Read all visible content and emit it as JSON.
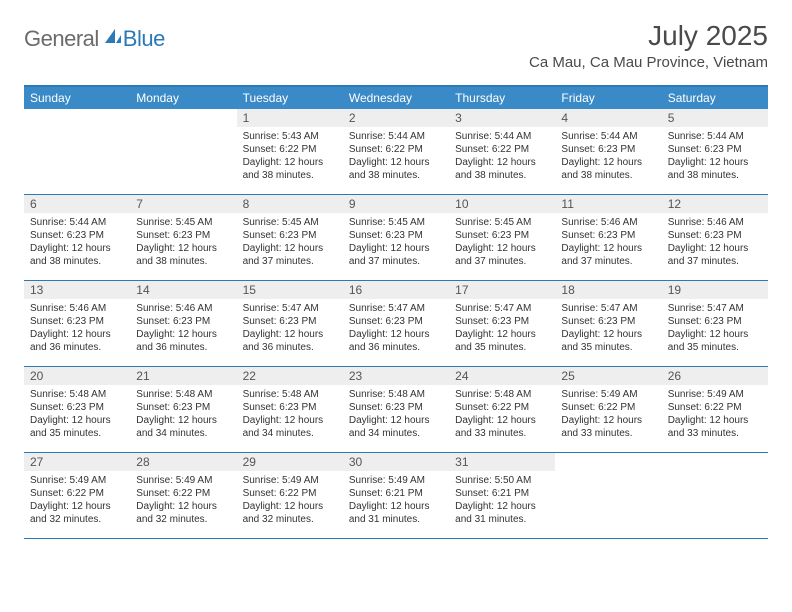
{
  "logo": {
    "general": "General",
    "blue": "Blue"
  },
  "title": "July 2025",
  "location": "Ca Mau, Ca Mau Province, Vietnam",
  "colors": {
    "header_bg": "#3a8ac8",
    "border": "#2a7ab8",
    "daynum_bg": "#eeeeee",
    "text": "#333333",
    "title_color": "#4a4a4a"
  },
  "weekdays": [
    "Sunday",
    "Monday",
    "Tuesday",
    "Wednesday",
    "Thursday",
    "Friday",
    "Saturday"
  ],
  "leading_blanks": 2,
  "days": [
    {
      "n": 1,
      "sunrise": "5:43 AM",
      "sunset": "6:22 PM",
      "daylight": "12 hours and 38 minutes."
    },
    {
      "n": 2,
      "sunrise": "5:44 AM",
      "sunset": "6:22 PM",
      "daylight": "12 hours and 38 minutes."
    },
    {
      "n": 3,
      "sunrise": "5:44 AM",
      "sunset": "6:22 PM",
      "daylight": "12 hours and 38 minutes."
    },
    {
      "n": 4,
      "sunrise": "5:44 AM",
      "sunset": "6:23 PM",
      "daylight": "12 hours and 38 minutes."
    },
    {
      "n": 5,
      "sunrise": "5:44 AM",
      "sunset": "6:23 PM",
      "daylight": "12 hours and 38 minutes."
    },
    {
      "n": 6,
      "sunrise": "5:44 AM",
      "sunset": "6:23 PM",
      "daylight": "12 hours and 38 minutes."
    },
    {
      "n": 7,
      "sunrise": "5:45 AM",
      "sunset": "6:23 PM",
      "daylight": "12 hours and 38 minutes."
    },
    {
      "n": 8,
      "sunrise": "5:45 AM",
      "sunset": "6:23 PM",
      "daylight": "12 hours and 37 minutes."
    },
    {
      "n": 9,
      "sunrise": "5:45 AM",
      "sunset": "6:23 PM",
      "daylight": "12 hours and 37 minutes."
    },
    {
      "n": 10,
      "sunrise": "5:45 AM",
      "sunset": "6:23 PM",
      "daylight": "12 hours and 37 minutes."
    },
    {
      "n": 11,
      "sunrise": "5:46 AM",
      "sunset": "6:23 PM",
      "daylight": "12 hours and 37 minutes."
    },
    {
      "n": 12,
      "sunrise": "5:46 AM",
      "sunset": "6:23 PM",
      "daylight": "12 hours and 37 minutes."
    },
    {
      "n": 13,
      "sunrise": "5:46 AM",
      "sunset": "6:23 PM",
      "daylight": "12 hours and 36 minutes."
    },
    {
      "n": 14,
      "sunrise": "5:46 AM",
      "sunset": "6:23 PM",
      "daylight": "12 hours and 36 minutes."
    },
    {
      "n": 15,
      "sunrise": "5:47 AM",
      "sunset": "6:23 PM",
      "daylight": "12 hours and 36 minutes."
    },
    {
      "n": 16,
      "sunrise": "5:47 AM",
      "sunset": "6:23 PM",
      "daylight": "12 hours and 36 minutes."
    },
    {
      "n": 17,
      "sunrise": "5:47 AM",
      "sunset": "6:23 PM",
      "daylight": "12 hours and 35 minutes."
    },
    {
      "n": 18,
      "sunrise": "5:47 AM",
      "sunset": "6:23 PM",
      "daylight": "12 hours and 35 minutes."
    },
    {
      "n": 19,
      "sunrise": "5:47 AM",
      "sunset": "6:23 PM",
      "daylight": "12 hours and 35 minutes."
    },
    {
      "n": 20,
      "sunrise": "5:48 AM",
      "sunset": "6:23 PM",
      "daylight": "12 hours and 35 minutes."
    },
    {
      "n": 21,
      "sunrise": "5:48 AM",
      "sunset": "6:23 PM",
      "daylight": "12 hours and 34 minutes."
    },
    {
      "n": 22,
      "sunrise": "5:48 AM",
      "sunset": "6:23 PM",
      "daylight": "12 hours and 34 minutes."
    },
    {
      "n": 23,
      "sunrise": "5:48 AM",
      "sunset": "6:23 PM",
      "daylight": "12 hours and 34 minutes."
    },
    {
      "n": 24,
      "sunrise": "5:48 AM",
      "sunset": "6:22 PM",
      "daylight": "12 hours and 33 minutes."
    },
    {
      "n": 25,
      "sunrise": "5:49 AM",
      "sunset": "6:22 PM",
      "daylight": "12 hours and 33 minutes."
    },
    {
      "n": 26,
      "sunrise": "5:49 AM",
      "sunset": "6:22 PM",
      "daylight": "12 hours and 33 minutes."
    },
    {
      "n": 27,
      "sunrise": "5:49 AM",
      "sunset": "6:22 PM",
      "daylight": "12 hours and 32 minutes."
    },
    {
      "n": 28,
      "sunrise": "5:49 AM",
      "sunset": "6:22 PM",
      "daylight": "12 hours and 32 minutes."
    },
    {
      "n": 29,
      "sunrise": "5:49 AM",
      "sunset": "6:22 PM",
      "daylight": "12 hours and 32 minutes."
    },
    {
      "n": 30,
      "sunrise": "5:49 AM",
      "sunset": "6:21 PM",
      "daylight": "12 hours and 31 minutes."
    },
    {
      "n": 31,
      "sunrise": "5:50 AM",
      "sunset": "6:21 PM",
      "daylight": "12 hours and 31 minutes."
    }
  ],
  "labels": {
    "sunrise": "Sunrise:",
    "sunset": "Sunset:",
    "daylight": "Daylight:"
  }
}
